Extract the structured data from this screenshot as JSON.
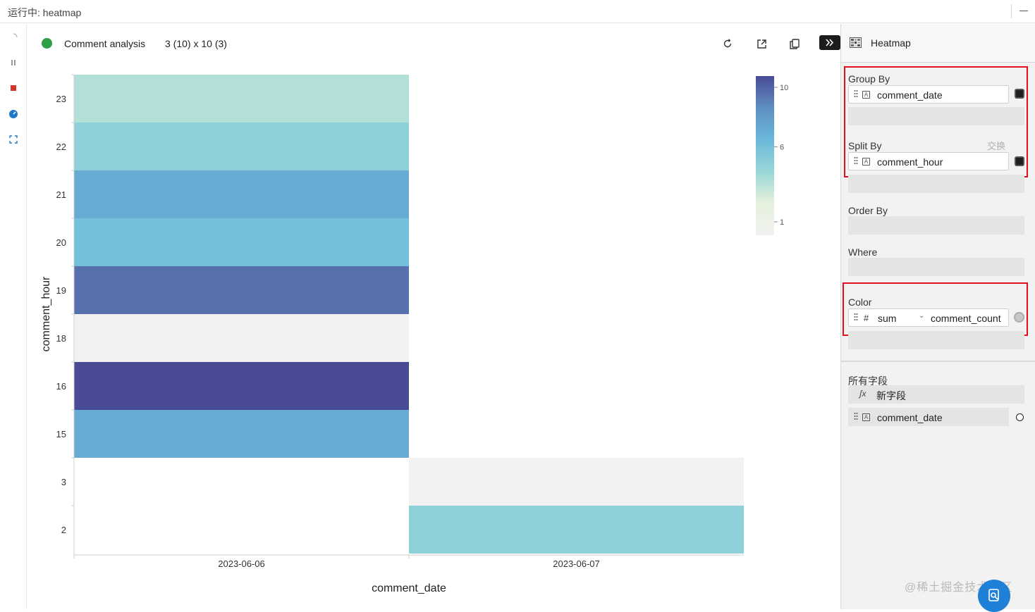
{
  "titlebar": {
    "title": "运行中: heatmap"
  },
  "toolbar": {
    "chart_name": "Comment analysis",
    "dims": "3 (10) x 10 (3)",
    "icons": [
      "refresh-icon",
      "external-link-icon",
      "copy-icon",
      "double-chevron-right-icon"
    ]
  },
  "chart_data": {
    "type": "heatmap",
    "x_categories": [
      "2023-06-06",
      "2023-06-07"
    ],
    "y_categories": [
      "23",
      "22",
      "21",
      "20",
      "19",
      "18",
      "16",
      "15",
      "3",
      "2"
    ],
    "xlabel": "comment_date",
    "ylabel": "comment_hour",
    "cells": [
      {
        "x": "2023-06-06",
        "y": "23",
        "value": 4
      },
      {
        "x": "2023-06-06",
        "y": "22",
        "value": 5
      },
      {
        "x": "2023-06-06",
        "y": "21",
        "value": 7
      },
      {
        "x": "2023-06-06",
        "y": "20",
        "value": 6
      },
      {
        "x": "2023-06-06",
        "y": "19",
        "value": 9
      },
      {
        "x": "2023-06-06",
        "y": "18",
        "value": 1
      },
      {
        "x": "2023-06-06",
        "y": "16",
        "value": 10
      },
      {
        "x": "2023-06-06",
        "y": "15",
        "value": 7
      },
      {
        "x": "2023-06-07",
        "y": "3",
        "value": 1
      },
      {
        "x": "2023-06-07",
        "y": "2",
        "value": 5
      }
    ],
    "color_scale": {
      "min": 1,
      "max": 10,
      "ticks": [
        "10",
        "6",
        "1"
      ],
      "stops": [
        "#f2f2f2",
        "#e6f1dc",
        "#99d6d7",
        "#6ab9db",
        "#5f8fc1",
        "#4a4b96"
      ]
    }
  },
  "sidebar": {
    "chart_type": "Heatmap",
    "group_by": {
      "label": "Group By",
      "field": "comment_date"
    },
    "split_by": {
      "label": "Split By",
      "field": "comment_hour",
      "swap": "交换"
    },
    "order_by": {
      "label": "Order By"
    },
    "where": {
      "label": "Where"
    },
    "color": {
      "label": "Color",
      "agg": "sum",
      "field": "comment_count"
    },
    "all_fields": {
      "label": "所有字段",
      "new_field": "新字段",
      "fields": [
        "comment_date"
      ]
    },
    "watermark": "@稀土掘金技术社区"
  }
}
